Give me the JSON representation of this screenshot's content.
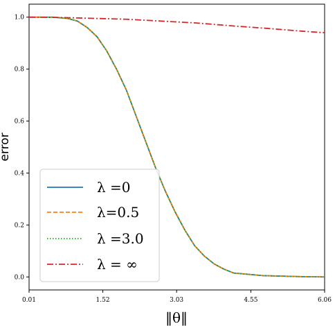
{
  "chart_data": {
    "type": "line",
    "xlabel": "‖θ‖",
    "ylabel": "error",
    "xlim": [
      0.01,
      6.06
    ],
    "ylim": [
      -0.05,
      1.05
    ],
    "xticks": [
      0.01,
      1.52,
      3.03,
      4.55,
      6.06
    ],
    "xtick_labels": [
      "0.01",
      "1.52",
      "3.03",
      "4.55",
      "6.06"
    ],
    "yticks": [
      0.0,
      0.2,
      0.4,
      0.6,
      0.8,
      1.0
    ],
    "ytick_labels": [
      "0.0",
      "0.2",
      "0.4",
      "0.6",
      "0.8",
      "1.0"
    ],
    "grid": false,
    "legend_position": "lower-left",
    "x": [
      0.01,
      0.5,
      0.8,
      1.0,
      1.2,
      1.4,
      1.6,
      1.8,
      2.0,
      2.2,
      2.4,
      2.6,
      2.8,
      3.0,
      3.2,
      3.4,
      3.6,
      3.8,
      4.0,
      4.2,
      4.5,
      4.8,
      5.2,
      5.6,
      6.06
    ],
    "series": [
      {
        "name": "λ =0",
        "color": "#1f77b4",
        "style": "solid",
        "values": [
          1.0,
          1.0,
          0.995,
          0.985,
          0.96,
          0.925,
          0.87,
          0.8,
          0.72,
          0.62,
          0.52,
          0.42,
          0.33,
          0.25,
          0.18,
          0.12,
          0.08,
          0.05,
          0.03,
          0.015,
          0.01,
          0.005,
          0.003,
          0.001,
          0.0
        ]
      },
      {
        "name": "λ=0.5",
        "color": "#ff7f0e",
        "style": "dashed",
        "values": [
          1.0,
          1.0,
          0.995,
          0.985,
          0.96,
          0.925,
          0.87,
          0.8,
          0.72,
          0.62,
          0.52,
          0.42,
          0.33,
          0.25,
          0.18,
          0.12,
          0.08,
          0.05,
          0.03,
          0.015,
          0.01,
          0.005,
          0.003,
          0.001,
          0.0
        ]
      },
      {
        "name": "λ =3.0",
        "color": "#2ca02c",
        "style": "dotted",
        "values": [
          1.0,
          1.0,
          0.995,
          0.985,
          0.96,
          0.925,
          0.87,
          0.8,
          0.72,
          0.62,
          0.52,
          0.42,
          0.33,
          0.25,
          0.18,
          0.12,
          0.08,
          0.05,
          0.03,
          0.015,
          0.01,
          0.005,
          0.003,
          0.001,
          0.0
        ]
      },
      {
        "name": "λ = ∞",
        "color": "#d62728",
        "style": "dashdot",
        "values": [
          1.0,
          0.999,
          0.998,
          0.997,
          0.996,
          0.995,
          0.994,
          0.993,
          0.992,
          0.99,
          0.988,
          0.986,
          0.984,
          0.982,
          0.98,
          0.978,
          0.975,
          0.972,
          0.969,
          0.966,
          0.962,
          0.958,
          0.952,
          0.946,
          0.94
        ]
      }
    ]
  }
}
